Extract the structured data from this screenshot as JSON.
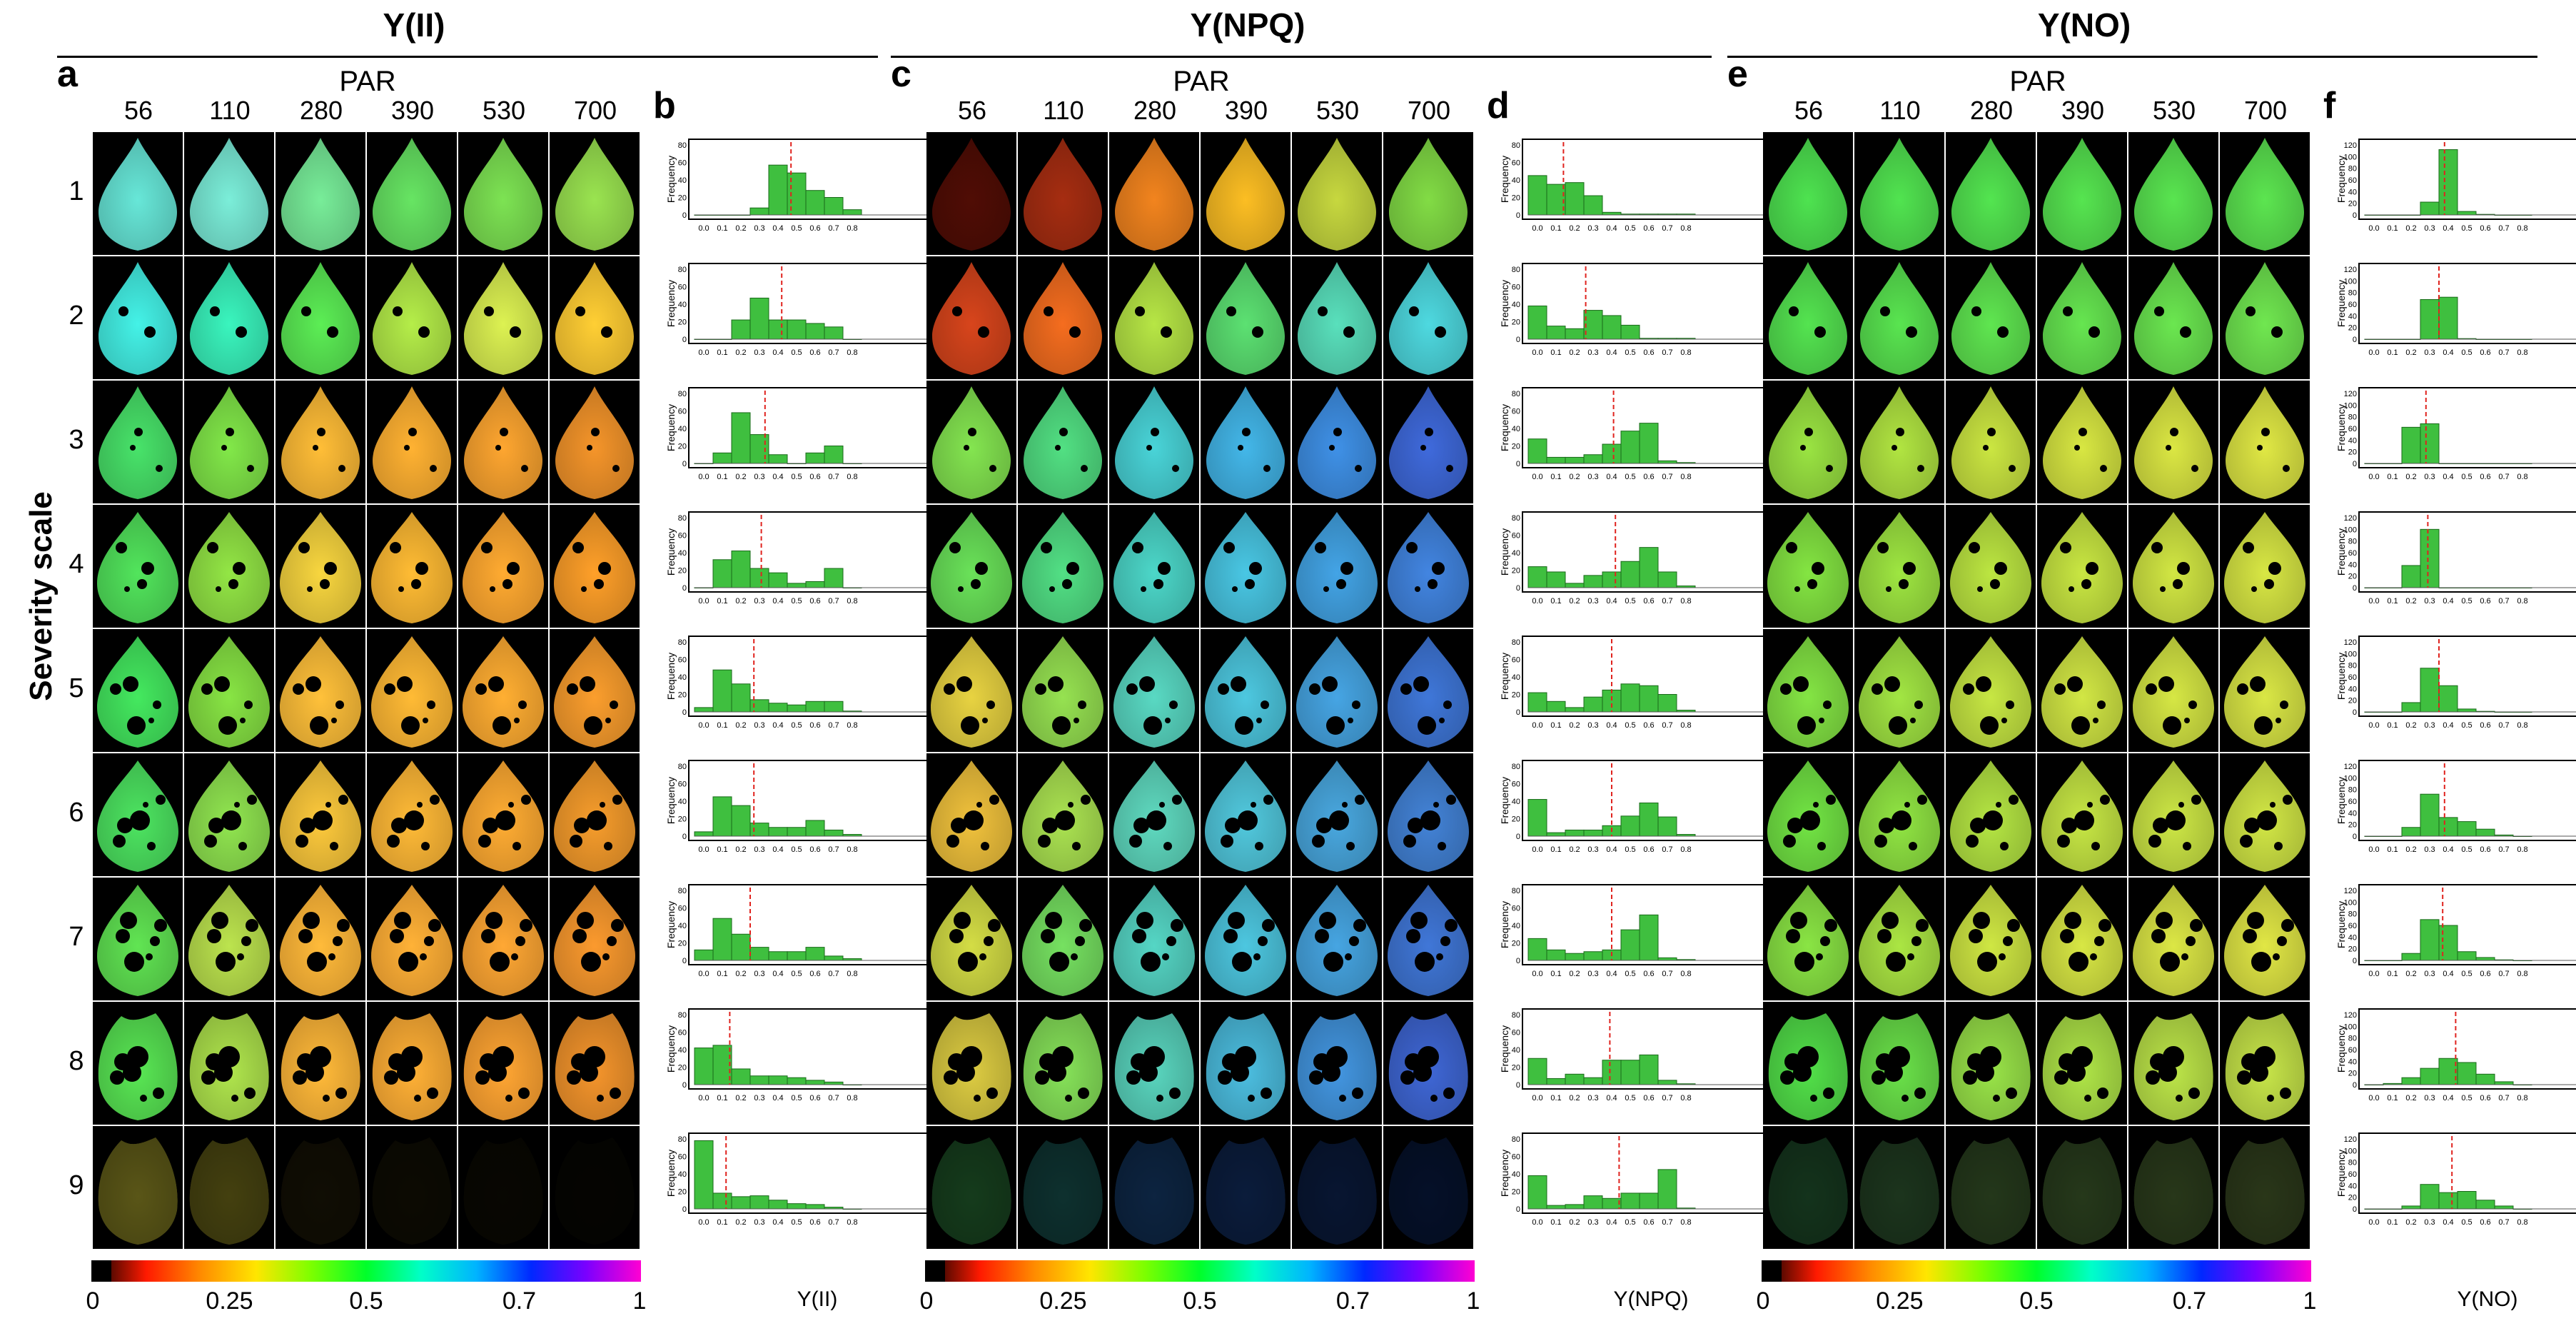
{
  "sections": [
    {
      "key": "yii",
      "title": "Y(II)",
      "panels": {
        "images": "a",
        "hist": "b"
      },
      "hist_xlabel": "Y(II)",
      "colorbar_ticks": [
        "0",
        "0.25",
        "0.5",
        "0.7",
        "1"
      ],
      "leaf_colors": [
        [
          "#5fd6c8",
          "#72dcc9",
          "#6fdb8e",
          "#5fd45c",
          "#74d24d",
          "#8fd34a"
        ],
        [
          "#3fe0d6",
          "#36e3b0",
          "#55dc4f",
          "#a8dc44",
          "#cde04c",
          "#f2c030"
        ],
        [
          "#43d262",
          "#78d744",
          "#f0b033",
          "#f0a52e",
          "#eb9a2c",
          "#e38a27"
        ],
        [
          "#4cd455",
          "#88d540",
          "#e6c63a",
          "#f0ae30",
          "#f39e2d",
          "#ec9426"
        ],
        [
          "#3fd858",
          "#7ed43f",
          "#efb336",
          "#f2ad31",
          "#f2a22e",
          "#e8922a"
        ],
        [
          "#47d45a",
          "#86d54a",
          "#ebbb38",
          "#f2ad33",
          "#f2a02f",
          "#e59129"
        ],
        [
          "#5ad44d",
          "#aed348",
          "#f4ad36",
          "#f4a533",
          "#f09c30",
          "#e88f2b"
        ],
        [
          "#52d64e",
          "#a3d547",
          "#f2ac35",
          "#f2a432",
          "#f19a2f",
          "#e38a29"
        ],
        [
          "#b8b030",
          "#8c8420",
          "#221d08",
          "#1a1606",
          "#120f05",
          "#0c0a03"
        ]
      ],
      "histograms": [
        {
          "y_max": 80,
          "y_ticks": [
            "0",
            "20",
            "40",
            "60",
            "80"
          ],
          "values": [
            0,
            0,
            0,
            8,
            57,
            48,
            28,
            20,
            6
          ],
          "mean": 0.47
        },
        {
          "y_max": 80,
          "y_ticks": [
            "0",
            "20",
            "40",
            "60",
            "80"
          ],
          "values": [
            0,
            0,
            22,
            47,
            22,
            22,
            18,
            14,
            0
          ],
          "mean": 0.42
        },
        {
          "y_max": 80,
          "y_ticks": [
            "0",
            "20",
            "40",
            "60",
            "80"
          ],
          "values": [
            0,
            12,
            58,
            33,
            10,
            0,
            12,
            20,
            0
          ],
          "mean": 0.33
        },
        {
          "y_max": 80,
          "y_ticks": [
            "0",
            "20",
            "40",
            "60",
            "80"
          ],
          "values": [
            0,
            32,
            42,
            22,
            17,
            5,
            7,
            22,
            0
          ],
          "mean": 0.31
        },
        {
          "y_max": 80,
          "y_ticks": [
            "0",
            "20",
            "40",
            "60",
            "80"
          ],
          "values": [
            5,
            48,
            32,
            14,
            10,
            8,
            12,
            12,
            1
          ],
          "mean": 0.27
        },
        {
          "y_max": 80,
          "y_ticks": [
            "0",
            "20",
            "40",
            "60",
            "80"
          ],
          "values": [
            5,
            45,
            35,
            15,
            10,
            10,
            18,
            7,
            2
          ],
          "mean": 0.27
        },
        {
          "y_max": 80,
          "y_ticks": [
            "0",
            "20",
            "40",
            "60",
            "80"
          ],
          "values": [
            12,
            48,
            30,
            15,
            10,
            10,
            15,
            5,
            2
          ],
          "mean": 0.25
        },
        {
          "y_max": 80,
          "y_ticks": [
            "0",
            "20",
            "40",
            "60",
            "80"
          ],
          "values": [
            42,
            45,
            18,
            10,
            10,
            8,
            5,
            3,
            0
          ],
          "mean": 0.14
        },
        {
          "y_max": 80,
          "y_ticks": [
            "0",
            "20",
            "40",
            "60",
            "80"
          ],
          "values": [
            78,
            18,
            14,
            15,
            10,
            6,
            5,
            2,
            0
          ],
          "mean": 0.12
        }
      ]
    },
    {
      "key": "ynpq",
      "title": "Y(NPQ)",
      "panels": {
        "images": "c",
        "hist": "d"
      },
      "hist_xlabel": "Y(NPQ)",
      "colorbar_ticks": [
        "0",
        "0.25",
        "0.5",
        "0.7",
        "1"
      ],
      "leaf_colors": [
        [
          "#4a0c05",
          "#9a2a10",
          "#e07a1c",
          "#e9b020",
          "#b8c83a",
          "#78cc40"
        ],
        [
          "#c8401a",
          "#e3651d",
          "#a9d540",
          "#55d06a",
          "#52cfae",
          "#48c9cf"
        ],
        [
          "#7ad44a",
          "#4ccf79",
          "#44c4c8",
          "#3ea9d8",
          "#3a86d6",
          "#3a62cc"
        ],
        [
          "#62d152",
          "#4ccf7b",
          "#46c7ba",
          "#44b8d3",
          "#3e98d5",
          "#3d7bd0"
        ],
        [
          "#d7c33c",
          "#8bd14b",
          "#52c9b5",
          "#47b9cf",
          "#4199d3",
          "#3a6ec9"
        ],
        [
          "#dfb438",
          "#9ed24b",
          "#58cab2",
          "#4bbace",
          "#449ccf",
          "#3e79c7"
        ],
        [
          "#c4cd40",
          "#6dd05a",
          "#4fc6b6",
          "#47b8cf",
          "#4199d1",
          "#3b6ec8"
        ],
        [
          "#cdbd3d",
          "#7cd152",
          "#52c5b0",
          "#46b0cf",
          "#3e8bd0",
          "#3a5fc6"
        ],
        [
          "#2c7a3a",
          "#1d6460",
          "#1b4a84",
          "#173a7a",
          "#112d66",
          "#0c2254"
        ]
      ],
      "histograms": [
        {
          "y_max": 80,
          "y_ticks": [
            "0",
            "20",
            "40",
            "60",
            "80"
          ],
          "values": [
            45,
            35,
            37,
            22,
            3,
            1,
            1,
            1,
            1
          ],
          "mean": 0.14
        },
        {
          "y_max": 80,
          "y_ticks": [
            "0",
            "20",
            "40",
            "60",
            "80"
          ],
          "values": [
            38,
            15,
            12,
            33,
            27,
            16,
            1,
            1,
            1
          ],
          "mean": 0.26
        },
        {
          "y_max": 80,
          "y_ticks": [
            "0",
            "20",
            "40",
            "60",
            "80"
          ],
          "values": [
            28,
            7,
            7,
            10,
            22,
            37,
            46,
            3,
            1
          ],
          "mean": 0.41
        },
        {
          "y_max": 80,
          "y_ticks": [
            "0",
            "20",
            "40",
            "60",
            "80"
          ],
          "values": [
            24,
            18,
            5,
            14,
            18,
            30,
            46,
            18,
            2
          ],
          "mean": 0.42
        },
        {
          "y_max": 80,
          "y_ticks": [
            "0",
            "20",
            "40",
            "60",
            "80"
          ],
          "values": [
            22,
            12,
            5,
            17,
            25,
            32,
            30,
            20,
            2
          ],
          "mean": 0.4
        },
        {
          "y_max": 80,
          "y_ticks": [
            "0",
            "20",
            "40",
            "60",
            "80"
          ],
          "values": [
            42,
            4,
            7,
            7,
            12,
            23,
            38,
            22,
            2
          ],
          "mean": 0.4
        },
        {
          "y_max": 80,
          "y_ticks": [
            "0",
            "20",
            "40",
            "60",
            "80"
          ],
          "values": [
            25,
            12,
            8,
            10,
            12,
            35,
            52,
            3,
            1
          ],
          "mean": 0.4
        },
        {
          "y_max": 80,
          "y_ticks": [
            "0",
            "20",
            "40",
            "60",
            "80"
          ],
          "values": [
            30,
            7,
            12,
            8,
            28,
            28,
            34,
            5,
            1
          ],
          "mean": 0.39
        },
        {
          "y_max": 80,
          "y_ticks": [
            "0",
            "20",
            "40",
            "60",
            "80"
          ],
          "values": [
            38,
            4,
            5,
            15,
            12,
            18,
            18,
            45,
            1
          ],
          "mean": 0.44
        }
      ]
    },
    {
      "key": "yno",
      "title": "Y(NO)",
      "panels": {
        "images": "e",
        "hist": "f"
      },
      "hist_xlabel": "Y(NO)",
      "colorbar_ticks": [
        "0",
        "0.25",
        "0.5",
        "0.7",
        "1"
      ],
      "leaf_colors": [
        [
          "#48d24a",
          "#4bd34a",
          "#4dd44a",
          "#50d44a",
          "#52d44a",
          "#55d44a"
        ],
        [
          "#4ed34a",
          "#52d44a",
          "#58d54a",
          "#5ed54a",
          "#63d64a",
          "#68d64a"
        ],
        [
          "#8fd33d",
          "#a4d43c",
          "#bcd53c",
          "#c8d63d",
          "#cbd63e",
          "#cfd73f"
        ],
        [
          "#7ad43d",
          "#92d53c",
          "#aed53c",
          "#bad63d",
          "#c2d63e",
          "#c8d63f"
        ],
        [
          "#7ad43f",
          "#96d53e",
          "#b8d63e",
          "#c2d63f",
          "#c6d63f",
          "#cad640"
        ],
        [
          "#6ad43f",
          "#86d53e",
          "#a8d53e",
          "#b8d63f",
          "#bed640",
          "#c2d640"
        ],
        [
          "#80d43f",
          "#9ed53e",
          "#c0d63e",
          "#c8d63f",
          "#ccd640",
          "#d0d640"
        ],
        [
          "#4ccf44",
          "#62d044",
          "#8ed343",
          "#a2d442",
          "#aed443",
          "#b8d444"
        ],
        [
          "#2a6a3a",
          "#3a6c3c",
          "#4a7238",
          "#4e7438",
          "#527236",
          "#567034"
        ]
      ],
      "histograms": [
        {
          "y_max": 120,
          "y_ticks": [
            "0",
            "20",
            "40",
            "60",
            "80",
            "100",
            "120"
          ],
          "values": [
            0,
            0,
            0,
            22,
            112,
            6,
            1,
            0,
            0
          ],
          "mean": 0.38
        },
        {
          "y_max": 120,
          "y_ticks": [
            "0",
            "20",
            "40",
            "60",
            "80",
            "100",
            "120"
          ],
          "values": [
            0,
            0,
            0,
            68,
            72,
            1,
            0,
            0,
            0
          ],
          "mean": 0.35
        },
        {
          "y_max": 120,
          "y_ticks": [
            "0",
            "20",
            "40",
            "60",
            "80",
            "100",
            "120"
          ],
          "values": [
            0,
            0,
            62,
            68,
            0,
            0,
            0,
            0,
            0
          ],
          "mean": 0.28
        },
        {
          "y_max": 120,
          "y_ticks": [
            "0",
            "20",
            "40",
            "60",
            "80",
            "100",
            "120"
          ],
          "values": [
            0,
            0,
            38,
            100,
            0,
            0,
            0,
            0,
            0
          ],
          "mean": 0.29
        },
        {
          "y_max": 120,
          "y_ticks": [
            "0",
            "20",
            "40",
            "60",
            "80",
            "100",
            "120"
          ],
          "values": [
            0,
            0,
            16,
            75,
            45,
            5,
            1,
            0,
            0
          ],
          "mean": 0.35
        },
        {
          "y_max": 120,
          "y_ticks": [
            "0",
            "20",
            "40",
            "60",
            "80",
            "100",
            "120"
          ],
          "values": [
            0,
            0,
            15,
            72,
            32,
            25,
            12,
            2,
            0
          ],
          "mean": 0.38
        },
        {
          "y_max": 120,
          "y_ticks": [
            "0",
            "20",
            "40",
            "60",
            "80",
            "100",
            "120"
          ],
          "values": [
            0,
            0,
            12,
            70,
            60,
            15,
            5,
            1,
            0
          ],
          "mean": 0.37
        },
        {
          "y_max": 120,
          "y_ticks": [
            "0",
            "20",
            "40",
            "60",
            "80",
            "100",
            "120"
          ],
          "values": [
            0,
            2,
            12,
            28,
            45,
            38,
            18,
            5,
            0
          ],
          "mean": 0.44
        },
        {
          "y_max": 120,
          "y_ticks": [
            "0",
            "20",
            "40",
            "60",
            "80",
            "100",
            "120"
          ],
          "values": [
            0,
            0,
            5,
            42,
            28,
            30,
            15,
            5,
            0
          ],
          "mean": 0.42
        }
      ]
    }
  ],
  "par_label": "PAR",
  "par_values": [
    "56",
    "110",
    "280",
    "390",
    "530",
    "700"
  ],
  "row_labels": [
    "1",
    "2",
    "3",
    "4",
    "5",
    "6",
    "7",
    "8",
    "9"
  ],
  "severity_label": "Severity scale",
  "hist_ylabel": "Frequency",
  "hist_x_ticks": [
    "0.0",
    "0.1",
    "0.2",
    "0.3",
    "0.4",
    "0.5",
    "0.6",
    "0.7",
    "0.8"
  ],
  "colors": {
    "bar_fill": "#3fbf3f",
    "bar_stroke": "#1a6a1a",
    "mean_line": "#e0231e",
    "colorbar": [
      "#000000",
      "#ff1a00",
      "#ff8c00",
      "#ffe600",
      "#7cff00",
      "#00ff2a",
      "#00ffc8",
      "#00b4ff",
      "#0028ff",
      "#7a00ff",
      "#ff00d2"
    ]
  }
}
